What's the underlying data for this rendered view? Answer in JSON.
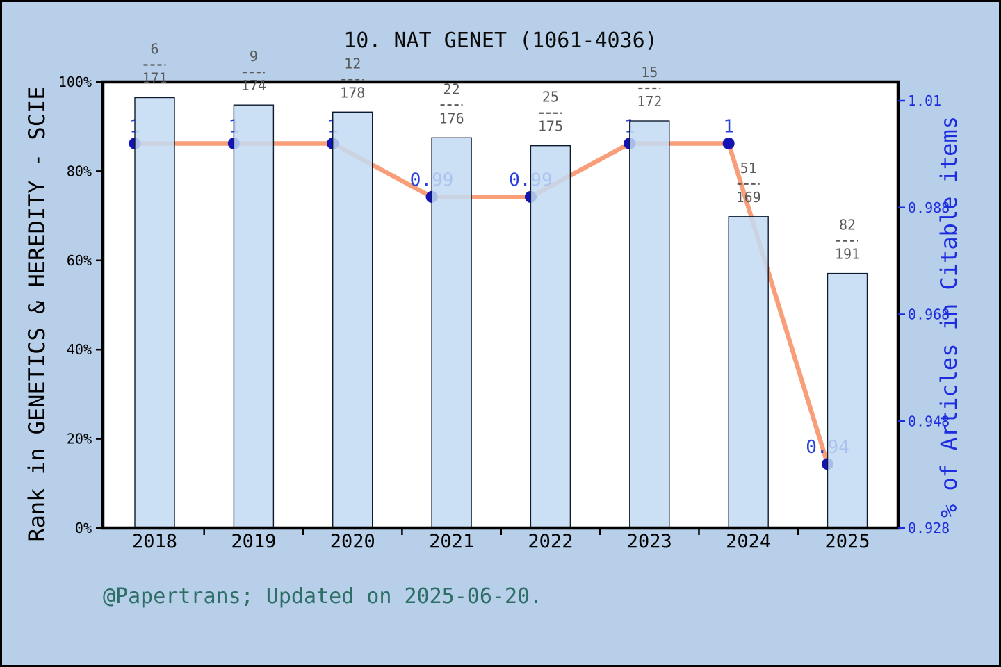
{
  "chart_data": {
    "type": "bar",
    "title": "10.  NAT GENET (1061-4036)",
    "footer": "@Papertrans; Updated on 2025-06-20.",
    "categories": [
      "2018",
      "2019",
      "2020",
      "2021",
      "2022",
      "2023",
      "2024",
      "2025"
    ],
    "series": [
      {
        "name": "rank-percentile-bars",
        "type": "bar",
        "axis": "left",
        "values": [
          96.49,
          94.83,
          93.26,
          87.5,
          85.71,
          91.28,
          69.82,
          57.07
        ]
      },
      {
        "name": "articles-in-citable-items-line",
        "type": "line",
        "axis": "right",
        "values": [
          1,
          1,
          1,
          0.99,
          0.99,
          1,
          1,
          0.94
        ],
        "point_labels": [
          "1",
          "1",
          "1",
          "0.99",
          "0.99",
          "1",
          "1",
          "0.94"
        ]
      }
    ],
    "bar_annotations": [
      {
        "numerator": "6",
        "denominator": "171"
      },
      {
        "numerator": "9",
        "denominator": "174"
      },
      {
        "numerator": "12",
        "denominator": "178"
      },
      {
        "numerator": "22",
        "denominator": "176"
      },
      {
        "numerator": "25",
        "denominator": "175"
      },
      {
        "numerator": "15",
        "denominator": "172"
      },
      {
        "numerator": "51",
        "denominator": "169"
      },
      {
        "numerator": "82",
        "denominator": "191"
      }
    ],
    "left_axis": {
      "title": "Rank in GENETICS & HEREDITY - SCIE",
      "min": 0,
      "max": 100,
      "ticks": [
        {
          "label": "0%",
          "value": 0
        },
        {
          "label": "20%",
          "value": 20
        },
        {
          "label": "40%",
          "value": 40
        },
        {
          "label": "60%",
          "value": 60
        },
        {
          "label": "80%",
          "value": 80
        },
        {
          "label": "100%",
          "value": 100
        }
      ]
    },
    "right_axis": {
      "title": "% of Articles in Citable items",
      "min": 0.928,
      "max": 1.008,
      "ticks": [
        {
          "label": "1.01",
          "value": 1.008
        },
        {
          "label": "0.988",
          "value": 0.988
        },
        {
          "label": "0.968",
          "value": 0.968
        },
        {
          "label": "0.948",
          "value": 0.948
        },
        {
          "label": "0.928",
          "value": 0.928
        }
      ]
    },
    "legend": "none",
    "grid": "off",
    "colors": {
      "background": "#b7cfe8",
      "plot_background": "#ffffff",
      "outer_border": "#000000",
      "axis": "#000000",
      "bar_fill": "#c3daf3",
      "bar_stroke": "#0d1b2e",
      "line": "#f89e79",
      "marker": "#1414b4",
      "value_label": "#2840dd",
      "right_axis_text": "#1e2ce0",
      "fraction_text": "#595959",
      "title_text": "#0a0a0a",
      "footer_text": "#2d6e66"
    }
  }
}
